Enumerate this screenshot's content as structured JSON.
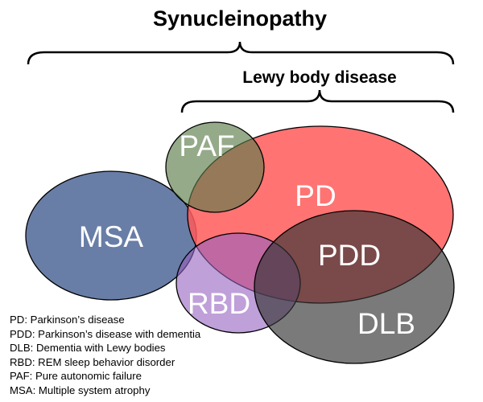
{
  "title": "Synucleinopathy",
  "subtitle": "Lewy body disease",
  "sets": [
    {
      "id": "MSA",
      "label": "MSA",
      "color": "#4f6797"
    },
    {
      "id": "PD",
      "label": "PD",
      "color": "#ff5a5a"
    },
    {
      "id": "PAF",
      "label": "PAF",
      "color": "#5c7c4a"
    },
    {
      "id": "RBD",
      "label": "RBD",
      "color": "#9560c0"
    },
    {
      "id": "PDD",
      "label": "PDD"
    },
    {
      "id": "DLB",
      "label": "DLB",
      "color": "#333333"
    }
  ],
  "legend": [
    "PD: Parkinson’s disease",
    "PDD: Parkinson’s disease with dementia",
    "DLB: Dementia with Lewy bodies",
    "RBD: REM sleep behavior disorder",
    "PAF: Pure autonomic failure",
    "MSA: Multiple system atrophy"
  ]
}
